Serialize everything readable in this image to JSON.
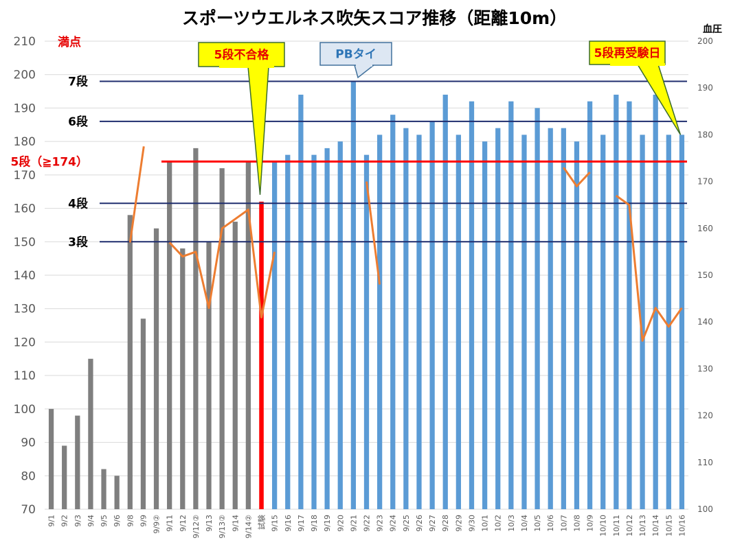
{
  "chart_data": {
    "type": "bar",
    "title": "スポーツウエルネス吹矢スコア推移（距離10m）",
    "y2label": "血圧",
    "ylim": [
      70,
      210
    ],
    "y_ticks": [
      70,
      80,
      90,
      100,
      110,
      120,
      130,
      140,
      150,
      160,
      170,
      180,
      190,
      200,
      210
    ],
    "y2lim": [
      100,
      200
    ],
    "y2_ticks": [
      100,
      110,
      120,
      130,
      140,
      150,
      160,
      170,
      180,
      190,
      200
    ],
    "categories": [
      "9/1",
      "9/2",
      "9/3",
      "9/4",
      "9/5",
      "9/6",
      "9/8",
      "9/9",
      "9/9②",
      "9/11",
      "9/12",
      "9/12②",
      "9/13",
      "9/13②",
      "9/14",
      "9/14②",
      "試験",
      "9/15",
      "9/16",
      "9/17",
      "9/18",
      "9/19",
      "9/20",
      "9/21",
      "9/22",
      "9/23",
      "9/24",
      "9/25",
      "9/26",
      "9/27",
      "9/28",
      "9/29",
      "9/30",
      "10/1",
      "10/2",
      "10/3",
      "10/4",
      "10/5",
      "10/6",
      "10/7",
      "10/8",
      "10/9",
      "10/10",
      "10/11",
      "10/12",
      "10/13",
      "10/14",
      "10/15",
      "10/16"
    ],
    "values": [
      100,
      89,
      98,
      115,
      82,
      80,
      158,
      127,
      154,
      174,
      148,
      178,
      150,
      172,
      156,
      174,
      162,
      174,
      176,
      194,
      176,
      178,
      180,
      198,
      176,
      182,
      188,
      184,
      182,
      186,
      194,
      182,
      192,
      180,
      184,
      192,
      182,
      190,
      184,
      184,
      180,
      192,
      182,
      194,
      192,
      182,
      194,
      182,
      182
    ],
    "bar_groups": {
      "gray_until_index": 15,
      "red_index": 16
    },
    "colors": {
      "gray": "#7f7f7f",
      "blue": "#5b9bd5",
      "red": "#ff0000",
      "line": "#ed7d31",
      "navy": "#1f2d6e"
    },
    "blood_pressure": [
      [
        null,
        null,
        null,
        null,
        null,
        null,
        157,
        null,
        null,
        null,
        null,
        null,
        null,
        null,
        null,
        null,
        null,
        null,
        null,
        null,
        null,
        null,
        null,
        null,
        null,
        null,
        null,
        null,
        null,
        null,
        null,
        null,
        null,
        null,
        null,
        null,
        null,
        null,
        null,
        null,
        null,
        null,
        null,
        null,
        null,
        null,
        null,
        null,
        null
      ],
      [
        null,
        null,
        null,
        null,
        null,
        null,
        null,
        null,
        null,
        157,
        154,
        155,
        143,
        160,
        162,
        164,
        141,
        155,
        null,
        null,
        null,
        null,
        null,
        null,
        null,
        null,
        null,
        null,
        null,
        null,
        null,
        null,
        null,
        null,
        null,
        null,
        null,
        null,
        null,
        null,
        null,
        null,
        null,
        null,
        null,
        null,
        null,
        null,
        null
      ],
      [
        null,
        null,
        null,
        null,
        null,
        null,
        null,
        null,
        null,
        null,
        null,
        null,
        null,
        null,
        null,
        null,
        null,
        null,
        null,
        null,
        null,
        null,
        null,
        null,
        170,
        148,
        null,
        null,
        null,
        null,
        null,
        null,
        null,
        null,
        null,
        null,
        null,
        null,
        null,
        null,
        null,
        null,
        null,
        null,
        null,
        null,
        null,
        null,
        null
      ],
      [
        null,
        null,
        null,
        null,
        null,
        null,
        null,
        null,
        null,
        null,
        null,
        null,
        null,
        null,
        null,
        null,
        null,
        null,
        null,
        null,
        null,
        null,
        null,
        null,
        null,
        null,
        null,
        null,
        null,
        null,
        null,
        null,
        null,
        null,
        null,
        null,
        null,
        null,
        null,
        173,
        169,
        172,
        null,
        null,
        null,
        null,
        null,
        null,
        null
      ],
      [
        null,
        null,
        null,
        null,
        null,
        null,
        null,
        null,
        null,
        null,
        null,
        null,
        null,
        null,
        null,
        null,
        null,
        null,
        null,
        null,
        null,
        null,
        null,
        null,
        null,
        null,
        null,
        null,
        null,
        null,
        null,
        null,
        null,
        null,
        null,
        null,
        null,
        null,
        null,
        null,
        null,
        null,
        null,
        167,
        165,
        136,
        143,
        139,
        143
      ]
    ],
    "reference_lines": [
      {
        "label": "7段",
        "value": 198,
        "color": "navy"
      },
      {
        "label": "6段",
        "value": 186,
        "color": "navy"
      },
      {
        "label": "5段（≧174）",
        "value": 174,
        "color": "red"
      },
      {
        "label": "4段",
        "value": 161.5,
        "color": "navy"
      },
      {
        "label": "3段",
        "value": 150,
        "color": "navy"
      }
    ],
    "max_label": "満点",
    "callouts": [
      {
        "text": "5段不合格",
        "target_index": 16,
        "style": "yellow"
      },
      {
        "text": "PBタイ",
        "target_index": 23,
        "style": "blue"
      },
      {
        "text": "5段再受験日",
        "target_index": 48,
        "style": "yellow"
      }
    ]
  }
}
